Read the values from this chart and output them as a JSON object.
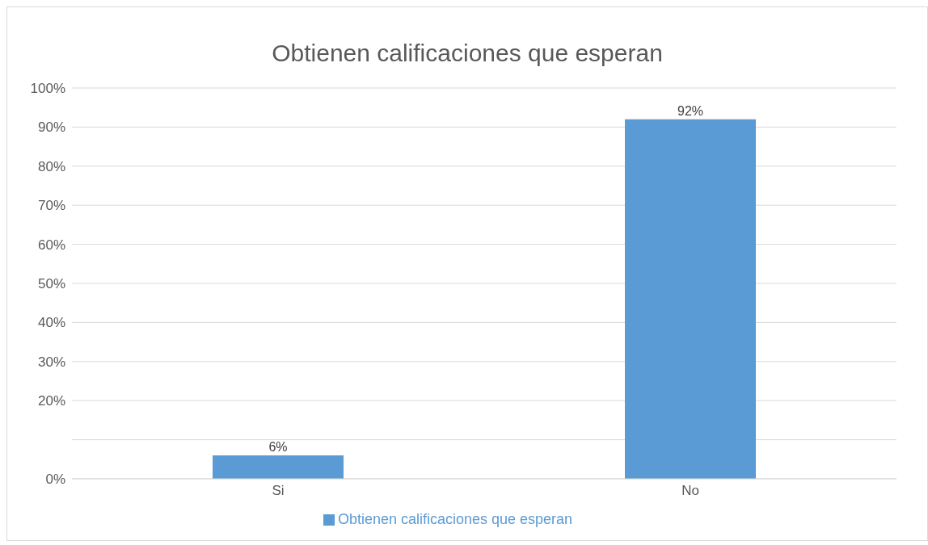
{
  "chart_data": {
    "type": "bar",
    "title": "Obtienen calificaciones que esperan",
    "categories": [
      "Si",
      "No"
    ],
    "series": [
      {
        "name": "Obtienen calificaciones que esperan",
        "color": "#5b9bd5",
        "values": [
          6,
          92
        ],
        "value_labels": [
          "6%",
          "92%"
        ]
      }
    ],
    "ylim": [
      0,
      100
    ],
    "yticks": [
      {
        "value": 0,
        "label": "0%"
      },
      {
        "value": 10,
        "label": null
      },
      {
        "value": 20,
        "label": "20%"
      },
      {
        "value": 30,
        "label": "30%"
      },
      {
        "value": 40,
        "label": "40%"
      },
      {
        "value": 50,
        "label": "50%"
      },
      {
        "value": 60,
        "label": "60%"
      },
      {
        "value": 70,
        "label": "70%"
      },
      {
        "value": 80,
        "label": "80%"
      },
      {
        "value": 90,
        "label": "90%"
      },
      {
        "value": 100,
        "label": "100%"
      }
    ],
    "grid": "y",
    "legend": "bottom"
  }
}
